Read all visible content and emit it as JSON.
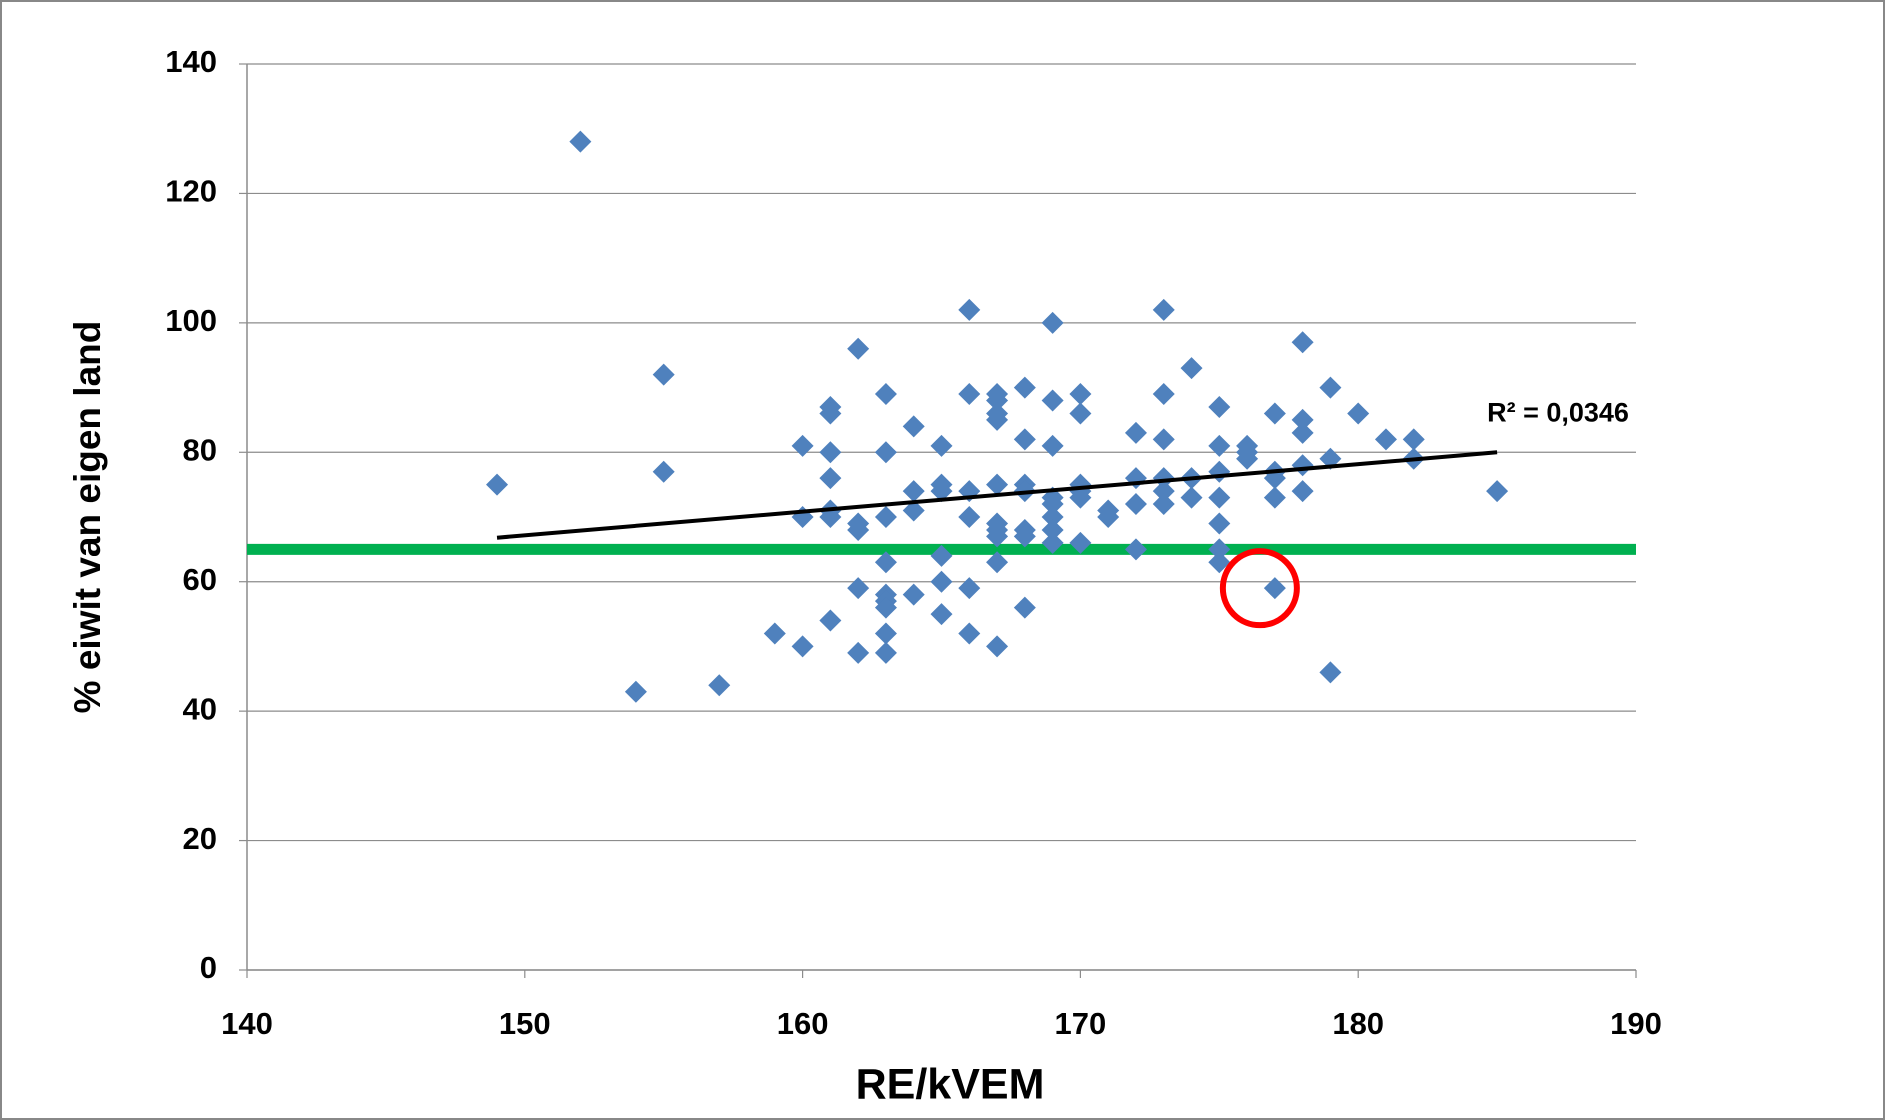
{
  "chart_data": {
    "type": "scatter",
    "x_label": "RE/kVEM",
    "y_label": "% eiwit van eigen land",
    "xlim": [
      140,
      190
    ],
    "xticks": [
      140,
      150,
      160,
      170,
      180,
      190
    ],
    "ylim": [
      0,
      140
    ],
    "yticks": [
      0,
      20,
      40,
      60,
      80,
      100,
      120,
      140
    ],
    "grid": "y",
    "color": "#4f81bd",
    "x": [
      149,
      152,
      154,
      155,
      155,
      157,
      159,
      160,
      160,
      160,
      161,
      161,
      161,
      161,
      161,
      161,
      161,
      162,
      162,
      162,
      162,
      162,
      163,
      163,
      163,
      163,
      163,
      163,
      163,
      163,
      163,
      164,
      164,
      164,
      164,
      165,
      165,
      165,
      165,
      165,
      165,
      166,
      166,
      166,
      166,
      166,
      166,
      167,
      167,
      167,
      167,
      167,
      167,
      167,
      167,
      167,
      167,
      168,
      168,
      168,
      168,
      168,
      168,
      168,
      169,
      169,
      169,
      169,
      169,
      169,
      169,
      169,
      170,
      170,
      170,
      170,
      170,
      170,
      171,
      171,
      172,
      172,
      172,
      172,
      173,
      173,
      173,
      173,
      173,
      173,
      174,
      174,
      174,
      175,
      175,
      175,
      175,
      175,
      175,
      175,
      176,
      176,
      176,
      177,
      177,
      177,
      177,
      177,
      178,
      178,
      178,
      178,
      178,
      179,
      179,
      179,
      180,
      181,
      182,
      182,
      185
    ],
    "values": [
      75,
      128,
      43,
      92,
      77,
      44,
      52,
      81,
      70,
      50,
      87,
      86,
      80,
      76,
      71,
      70,
      54,
      96,
      69,
      68,
      59,
      49,
      89,
      80,
      70,
      63,
      58,
      57,
      56,
      52,
      49,
      84,
      74,
      71,
      58,
      81,
      75,
      74,
      64,
      60,
      55,
      102,
      89,
      74,
      70,
      59,
      52,
      89,
      88,
      86,
      85,
      75,
      69,
      68,
      67,
      63,
      50,
      90,
      82,
      75,
      74,
      68,
      67,
      56,
      100,
      88,
      81,
      73,
      72,
      70,
      68,
      66,
      89,
      86,
      75,
      74,
      73,
      66,
      71,
      70,
      83,
      76,
      72,
      65,
      102,
      89,
      82,
      76,
      74,
      72,
      93,
      76,
      73,
      87,
      81,
      77,
      73,
      69,
      65,
      63,
      81,
      80,
      79,
      86,
      77,
      76,
      73,
      59,
      97,
      85,
      83,
      78,
      74,
      90,
      79,
      46,
      86,
      82,
      82,
      79,
      74
    ],
    "trendline": {
      "x": [
        149,
        185
      ],
      "y": [
        66.8,
        80
      ],
      "color": "#000000",
      "label": "R² = 0,0346"
    },
    "hline": {
      "y": 65,
      "color": "#00b050"
    },
    "highlight": {
      "x": 177,
      "y": 59,
      "color": "#ff0000"
    }
  }
}
